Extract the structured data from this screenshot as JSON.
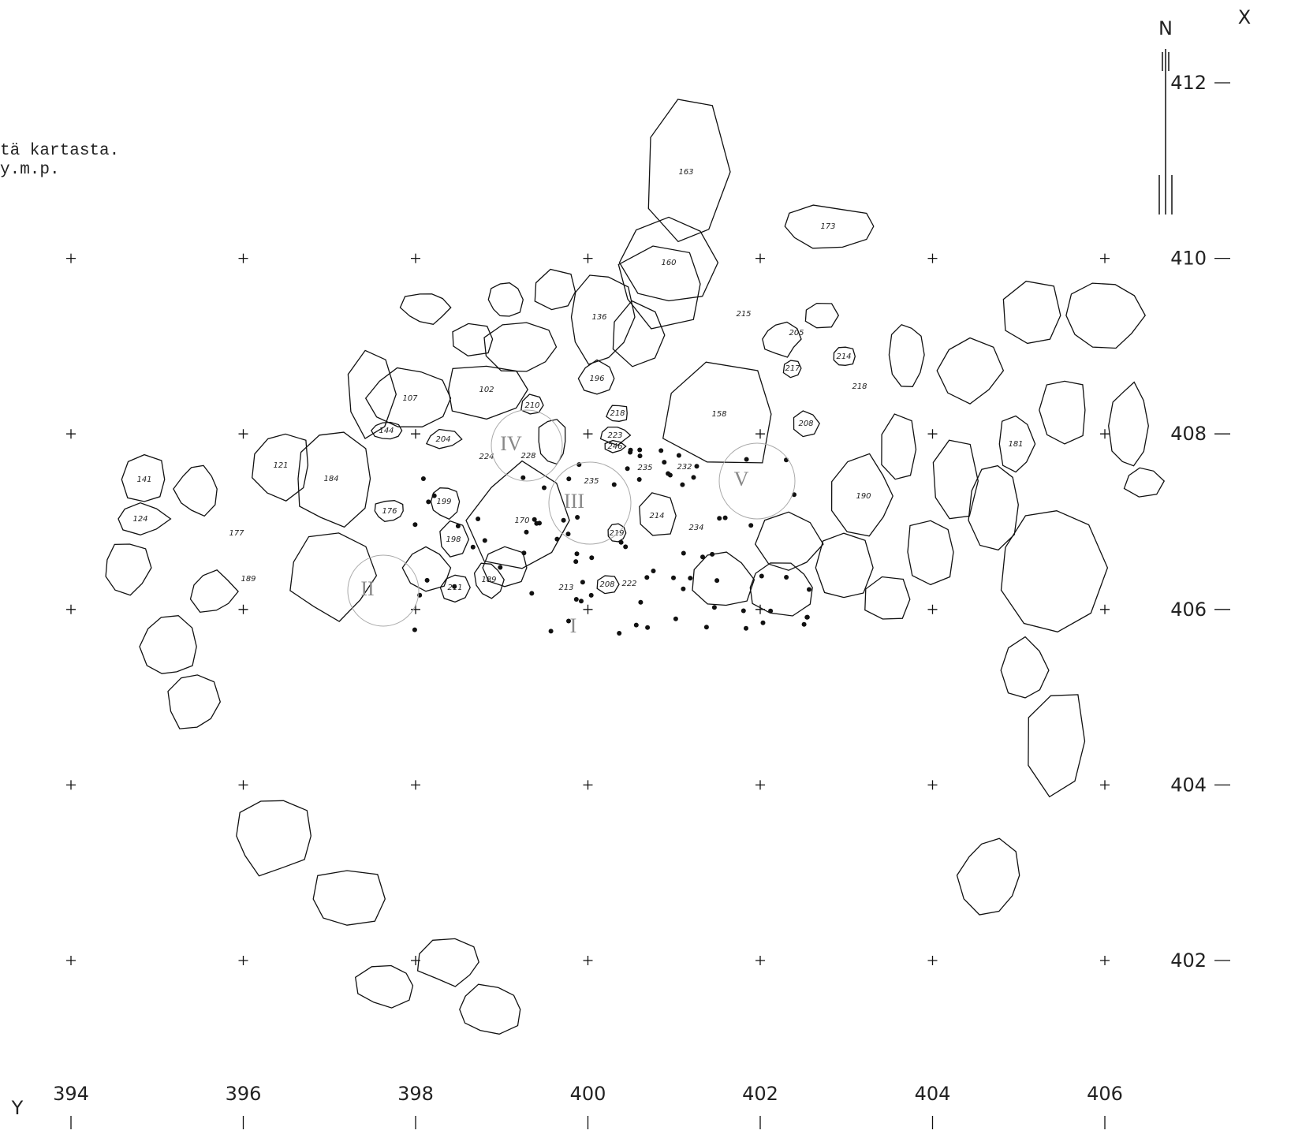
{
  "header": {
    "lines": [
      "tä kartasta.",
      "y.m.p."
    ]
  },
  "north_label": "N",
  "x_axis": {
    "label": "X",
    "ticks": [
      "412",
      "410",
      "408",
      "406",
      "404",
      "402"
    ]
  },
  "y_axis": {
    "label": "Y",
    "ticks": [
      "394",
      "396",
      "398",
      "400",
      "402",
      "404",
      "406"
    ]
  },
  "stones": [
    "163",
    "173",
    "160",
    "215",
    "205",
    "136",
    "214",
    "217",
    "218",
    "196",
    "107",
    "102",
    "158",
    "208",
    "210",
    "218",
    "223",
    "246",
    "204",
    "144",
    "224",
    "228",
    "121",
    "184",
    "141",
    "181",
    "190",
    "235",
    "235",
    "232",
    "199",
    "176",
    "170",
    "214",
    "124",
    "177",
    "198",
    "219",
    "234",
    "189",
    "189",
    "211",
    "208",
    "222",
    "213"
  ],
  "sections": [
    "IV",
    "III",
    "V",
    "II",
    "I"
  ]
}
